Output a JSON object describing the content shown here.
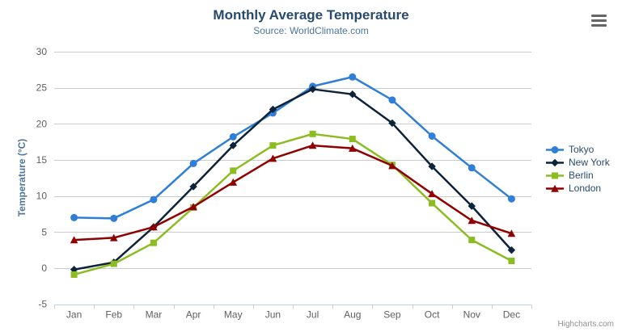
{
  "chart": {
    "export_button_icon": "hamburger-menu",
    "credits": "Highcharts.com"
  },
  "theme": {
    "title_color": "#274b6d",
    "subtitle_color": "#4d759e",
    "axis_title_color": "#4d759e",
    "axis_label_color": "#606060",
    "grid_color": "#cccccc",
    "axis_line_color": "#c0d0e0",
    "credits_color": "#909090",
    "background": "#ffffff"
  },
  "chart_data": {
    "type": "line",
    "title": "Monthly Average Temperature",
    "subtitle": "Source: WorldClimate.com",
    "xlabel": "",
    "ylabel": "Temperature (°C)",
    "ylim": [
      -5,
      30
    ],
    "ytick_step": 5,
    "grid": "horizontal-only",
    "legend_position": "right",
    "categories": [
      "Jan",
      "Feb",
      "Mar",
      "Apr",
      "May",
      "Jun",
      "Jul",
      "Aug",
      "Sep",
      "Oct",
      "Nov",
      "Dec"
    ],
    "series": [
      {
        "name": "Tokyo",
        "color": "#2f7ed8",
        "marker": "circle",
        "values": [
          7.0,
          6.9,
          9.5,
          14.5,
          18.2,
          21.5,
          25.2,
          26.5,
          23.3,
          18.3,
          13.9,
          9.6
        ]
      },
      {
        "name": "New York",
        "color": "#0d233a",
        "marker": "diamond",
        "values": [
          -0.2,
          0.8,
          5.7,
          11.3,
          17.0,
          22.0,
          24.8,
          24.1,
          20.1,
          14.1,
          8.6,
          2.5
        ]
      },
      {
        "name": "Berlin",
        "color": "#8bbc21",
        "marker": "square",
        "values": [
          -0.9,
          0.6,
          3.5,
          8.4,
          13.5,
          17.0,
          18.6,
          17.9,
          14.3,
          9.0,
          3.9,
          1.0
        ]
      },
      {
        "name": "London",
        "color": "#910000",
        "marker": "triangle",
        "values": [
          3.9,
          4.2,
          5.7,
          8.5,
          11.9,
          15.2,
          17.0,
          16.6,
          14.2,
          10.3,
          6.6,
          4.8
        ]
      }
    ]
  }
}
